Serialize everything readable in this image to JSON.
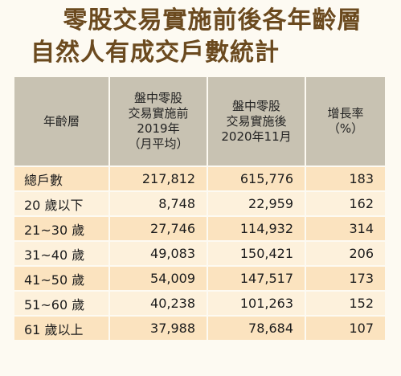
{
  "title": {
    "line1": "零股交易實施前後各年齡層",
    "line2": "自然人有成交戶數統計"
  },
  "table": {
    "headers": [
      [
        "年齡層"
      ],
      [
        "盤中零股",
        "交易實施前",
        "2019年",
        "（月平均）"
      ],
      [
        "盤中零股",
        "交易實施後",
        "2020年11月"
      ],
      [
        "增長率",
        "（%）"
      ]
    ],
    "rows": [
      {
        "label": "總戶數",
        "before": "217,812",
        "after": "615,776",
        "rate": "183"
      },
      {
        "label": "20 歲以下",
        "before": "8,748",
        "after": "22,959",
        "rate": "162"
      },
      {
        "label": "21~30 歲",
        "before": "27,746",
        "after": "114,932",
        "rate": "314"
      },
      {
        "label": "31~40 歲",
        "before": "49,083",
        "after": "150,421",
        "rate": "206"
      },
      {
        "label": "41~50 歲",
        "before": "54,009",
        "after": "147,517",
        "rate": "173"
      },
      {
        "label": "51~60 歲",
        "before": "40,238",
        "after": "101,263",
        "rate": "152"
      },
      {
        "label": "61 歲以上",
        "before": "37,988",
        "after": "78,684",
        "rate": "107"
      }
    ]
  }
}
